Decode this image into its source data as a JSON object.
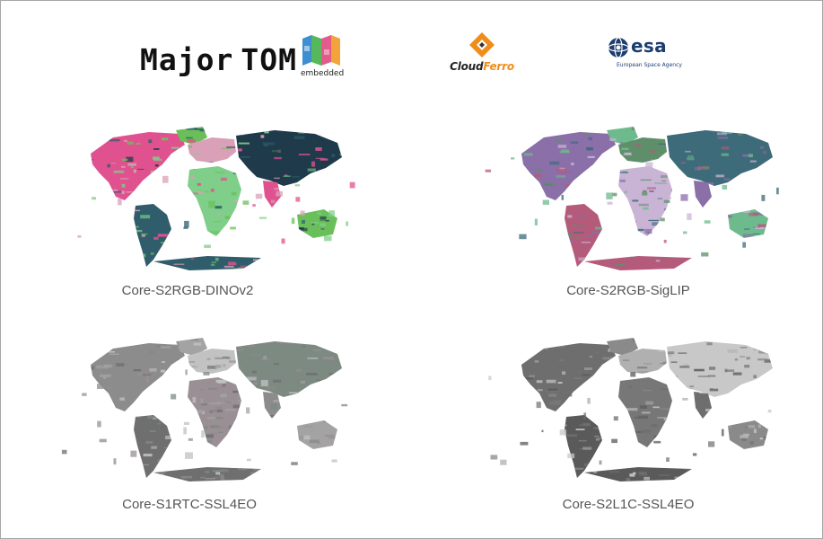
{
  "logos": {
    "majortom": {
      "word1": "Major",
      "word2": "TOM",
      "sub": "embedded"
    },
    "cloudferro": {
      "part1": "Cloud",
      "part2": "Ferro"
    },
    "esa": {
      "word": "esa",
      "sub": "European Space Agency"
    }
  },
  "maps": [
    {
      "caption": "Core-S2RGB-DINOv2",
      "palette": [
        "#e0528f",
        "#6bbf5a",
        "#2f5d6b",
        "#d9a0b8",
        "#7fcf8a",
        "#1f3a4a"
      ]
    },
    {
      "caption": "Core-S2RGB-SigLIP",
      "palette": [
        "#8a6fa8",
        "#6dba8c",
        "#b45a7a",
        "#5f8f6a",
        "#c9b4d6",
        "#3e6b7a"
      ]
    },
    {
      "caption": "Core-S1RTC-SSL4EO",
      "palette": [
        "#8c8c8c",
        "#a3a3a3",
        "#6f6f6f",
        "#c2c2c2",
        "#9a8f94",
        "#7d8a82"
      ]
    },
    {
      "caption": "Core-S2L1C-SSL4EO",
      "palette": [
        "#6e6e6e",
        "#8a8a8a",
        "#5a5a5a",
        "#b0b0b0",
        "#777777",
        "#c8c8c8"
      ]
    }
  ]
}
